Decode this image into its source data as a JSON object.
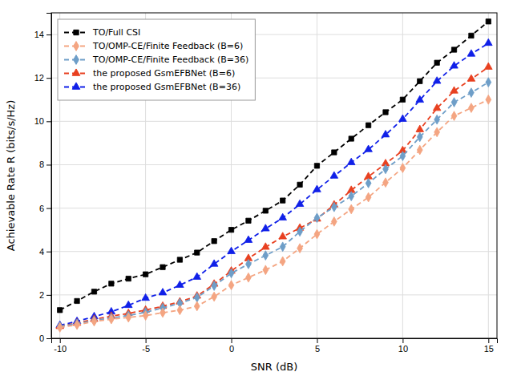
{
  "chart_data": {
    "type": "line",
    "x_label": "SNR (dB)",
    "y_label": "Achievable Rate R (bits/s/Hz)",
    "x": [
      -10,
      -9,
      -8,
      -7,
      -6,
      -5,
      -4,
      -3,
      -2,
      -1,
      0,
      1,
      2,
      3,
      4,
      5,
      6,
      7,
      8,
      9,
      10,
      11,
      12,
      13,
      14,
      15
    ],
    "series": [
      {
        "name": "TO/Full CSI",
        "color": "#000000",
        "marker": "square",
        "line_style": "dashed",
        "values": [
          1.3,
          1.72,
          2.15,
          2.52,
          2.75,
          2.95,
          3.28,
          3.62,
          3.95,
          4.48,
          5.0,
          5.42,
          5.88,
          6.35,
          7.08,
          7.95,
          8.57,
          9.2,
          9.82,
          10.42,
          11.0,
          11.85,
          12.7,
          13.3,
          13.95,
          14.6
        ]
      },
      {
        "name": "TO/OMP-CE/Finite Feedback (B=6)",
        "color": "#F4A582",
        "marker": "diamond",
        "line_style": "dashed",
        "values": [
          0.5,
          0.62,
          0.78,
          0.88,
          0.96,
          1.05,
          1.18,
          1.3,
          1.48,
          1.92,
          2.45,
          2.8,
          3.15,
          3.55,
          4.15,
          4.8,
          5.38,
          5.95,
          6.5,
          7.18,
          7.85,
          8.68,
          9.5,
          10.25,
          10.62,
          11.0
        ]
      },
      {
        "name": "TO/OMP-CE/Finite Feedback (B=36)",
        "color": "#6E9EC8",
        "marker": "diamond",
        "line_style": "dashed",
        "values": [
          0.55,
          0.67,
          0.82,
          0.94,
          1.05,
          1.2,
          1.4,
          1.62,
          1.88,
          2.42,
          3.0,
          3.42,
          3.82,
          4.22,
          4.92,
          5.55,
          6.05,
          6.55,
          7.15,
          7.8,
          8.4,
          9.28,
          10.08,
          10.88,
          11.32,
          11.8
        ]
      },
      {
        "name": "the proposed GsmEFBNet (B=6)",
        "color": "#E84020",
        "marker": "triangle",
        "line_style": "dashed",
        "values": [
          0.55,
          0.7,
          0.88,
          1.02,
          1.15,
          1.3,
          1.48,
          1.68,
          1.95,
          2.5,
          3.1,
          3.68,
          4.2,
          4.68,
          5.08,
          5.5,
          6.15,
          6.82,
          7.45,
          8.05,
          8.65,
          9.62,
          10.6,
          11.4,
          11.95,
          12.5
        ]
      },
      {
        "name": "the proposed GsmEFBNet (B=36)",
        "color": "#1020E8",
        "marker": "triangle",
        "line_style": "dashed",
        "values": [
          0.6,
          0.78,
          1.0,
          1.22,
          1.52,
          1.85,
          2.1,
          2.45,
          2.82,
          3.42,
          4.0,
          4.52,
          5.05,
          5.55,
          6.18,
          6.85,
          7.48,
          8.1,
          8.7,
          9.38,
          10.1,
          10.98,
          11.85,
          12.55,
          13.1,
          13.6
        ]
      }
    ],
    "xlim": [
      -10.5,
      15.5
    ],
    "ylim": [
      0,
      15
    ],
    "xticks": [
      -10,
      -5,
      0,
      5,
      10,
      15
    ],
    "yticks": [
      0,
      2,
      4,
      6,
      8,
      10,
      12,
      14
    ],
    "grid": true,
    "legend": "upper-left"
  }
}
